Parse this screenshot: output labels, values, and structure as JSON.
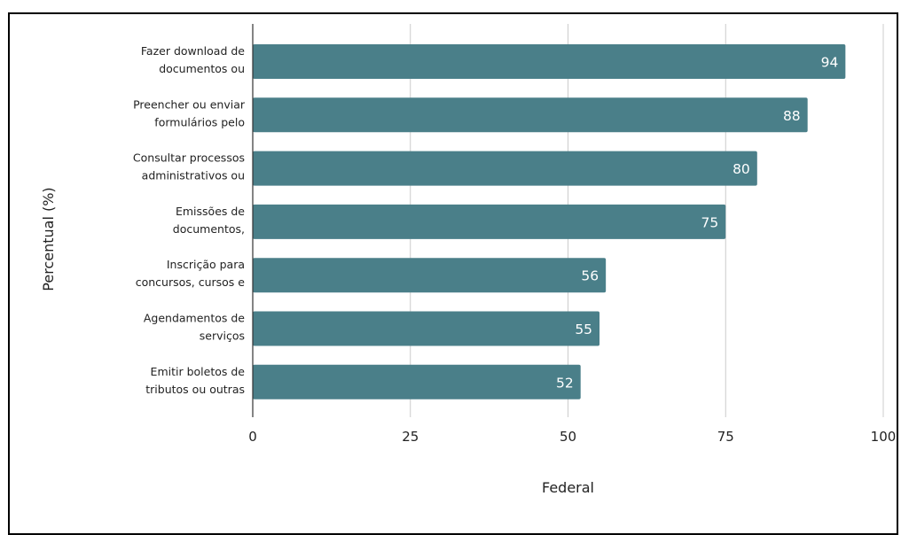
{
  "chart_data": {
    "type": "bar",
    "orientation": "horizontal",
    "categories": [
      [
        "Fazer download de",
        "documentos ou"
      ],
      [
        "Preencher ou enviar",
        "formulários pelo"
      ],
      [
        "Consultar processos",
        "administrativos ou"
      ],
      [
        "Emissões de",
        "documentos,"
      ],
      [
        "Inscrição para",
        "concursos, cursos e"
      ],
      [
        "Agendamentos de",
        "serviços"
      ],
      [
        "Emitir boletos de",
        "tributos ou outras"
      ]
    ],
    "values": [
      94,
      88,
      80,
      75,
      56,
      55,
      52
    ],
    "data_labels": [
      "94",
      "88",
      "80",
      "75",
      "56",
      "55",
      "52"
    ],
    "xlabel": "Federal",
    "ylabel": "Percentual (%)",
    "xlim": [
      0,
      100
    ],
    "x_ticks": [
      "0",
      "25",
      "50",
      "75",
      "100"
    ],
    "grid": "vertical",
    "legend": "none",
    "bar_color": "#4a7f89",
    "frame_color": "#000000"
  }
}
